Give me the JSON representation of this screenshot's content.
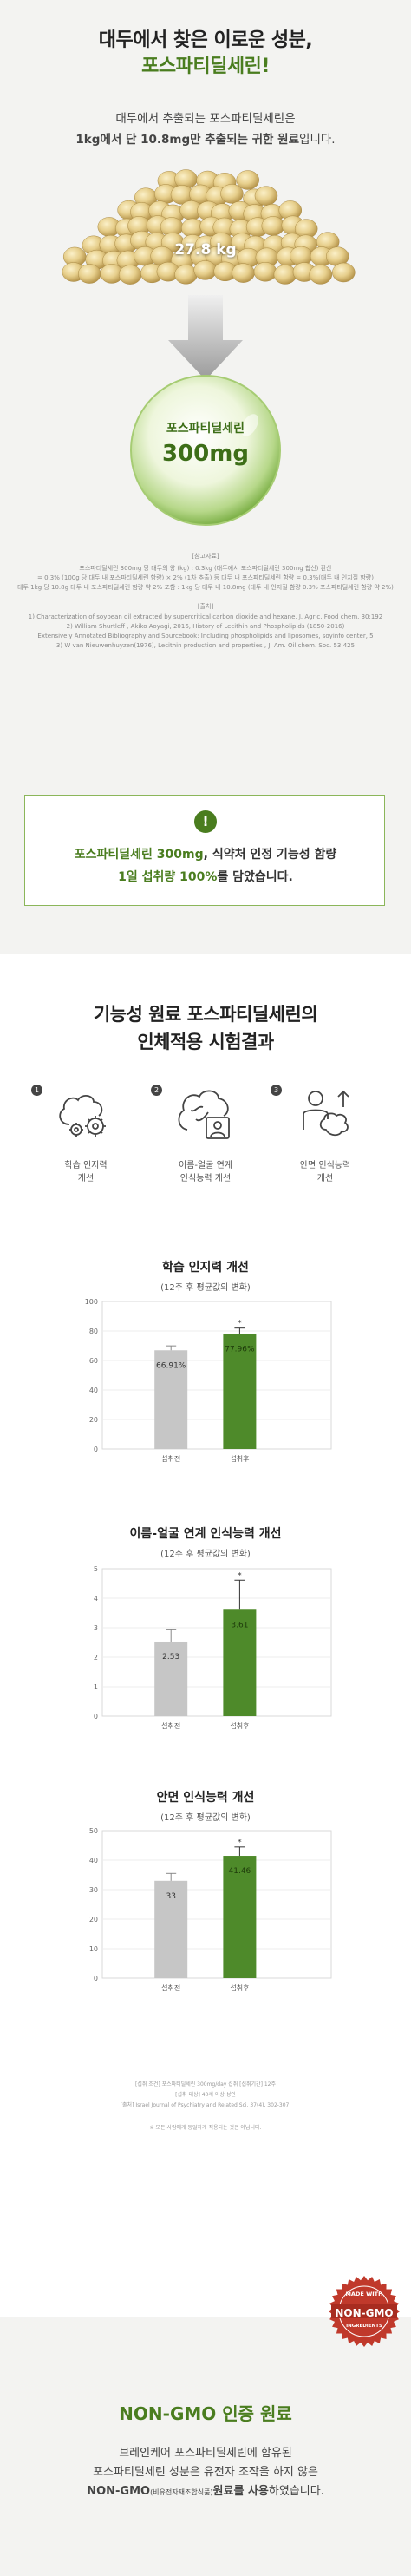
{
  "hero": {
    "title_line1": "대두에서 찾은 이로운 성분,",
    "title_line2": "포스파티딜세린!",
    "desc_line1": "대두에서 추출되는 포스파티딜세린은",
    "desc_line2_bold": "1kg에서 단 10.8mg만 추출되는 귀한 원료",
    "desc_line2_rest": "입니다.",
    "bean_weight": "27.8 kg",
    "bubble_label": "포스파티딜세린",
    "bubble_value": "300mg"
  },
  "calc": {
    "heading": "[참고자료]",
    "lines": [
      "포스파티딜세린 300mg 당 대두의 양 (kg) : 0.3kg (대두에서 포스파티딜세린 300mg 합산) 환산",
      "= 0.3% (100g 당 대두 내 포스파티딜세린 함량) × 2% (1차 추출) 등 대두 내 포스파티딜세린 함량 = 0.3%(대두 내 인지질 함량)",
      "대두 1kg 당 10.8g 대두 내 포스파티딜세린 함량 약 2% 포함 : 1kg 당 대두 내 10.8mg (대두 내 인지질 함량 0.3% 포스파티딜세린 함량 약 2%)"
    ],
    "source_heading": "[출처]",
    "sources": [
      "1) Characterization of soybean oil extracted by supercritical carbon dioxide and hexane, J. Agric. Food chem. 30:192",
      "2) William Shurtleff , Akiko Aoyagi, 2016, History of Lecithin and Phospholipids (1850-2016)",
      "Extensively Annotated Bibliography and Sourcebook: Including phospholipids and liposomes, soyinfo center, 5",
      "3) W van Nieuwenhuyzen(1976), Lecithin production and properties , J. Am. Oil chem. Soc. 53:425"
    ]
  },
  "notice": {
    "icon": "exclamation-icon",
    "line1_bold": "포스파티딜세린 300mg",
    "line1_rest": ", 식약처 인정 기능성 함량",
    "line2_bold": "1일 섭취량 100%",
    "line2_rest": "를 담았습니다."
  },
  "trial": {
    "title_line1": "기능성 원료 포스파티딜세린의",
    "title_line2": "인체적용 시험결과",
    "features": [
      {
        "num": "1",
        "icon": "brain-gears-icon",
        "line1": "학습 인지력",
        "line2": "개선"
      },
      {
        "num": "2",
        "icon": "brain-face-icon",
        "line1": "이름-얼굴 연계",
        "line2": "인식능력 개선"
      },
      {
        "num": "3",
        "icon": "person-brain-icon",
        "line1": "안면 인식능력",
        "line2": "개선"
      }
    ]
  },
  "chart_data": [
    {
      "type": "bar",
      "title": "학습 인지력 개선",
      "subtitle": "(12주 후 평균값의 변화)",
      "categories": [
        "섭취전",
        "섭취후"
      ],
      "values": [
        66.91,
        77.96
      ],
      "value_labels": [
        "66.91%",
        "77.96%"
      ],
      "ylim": [
        0,
        100
      ],
      "yticks": [
        0,
        20,
        40,
        60,
        80,
        100
      ],
      "error": [
        3,
        4
      ],
      "colors": [
        "#c6c6c6",
        "#4e8a2a"
      ],
      "significance": "*"
    },
    {
      "type": "bar",
      "title": "이름-얼굴 연계 인식능력 개선",
      "subtitle": "(12주 후 평균값의 변화)",
      "categories": [
        "섭취전",
        "섭취후"
      ],
      "values": [
        2.53,
        3.61
      ],
      "value_labels": [
        "2.53",
        "3.61"
      ],
      "ylim": [
        0,
        5
      ],
      "yticks": [
        0,
        1,
        2,
        3,
        4,
        5
      ],
      "error": [
        0.4,
        1.0
      ],
      "colors": [
        "#c6c6c6",
        "#4e8a2a"
      ],
      "significance": "*"
    },
    {
      "type": "bar",
      "title": "안면 인식능력 개선",
      "subtitle": "(12주 후 평균값의 변화)",
      "categories": [
        "섭취전",
        "섭취후"
      ],
      "values": [
        33,
        41.46
      ],
      "value_labels": [
        "33",
        "41.46"
      ],
      "ylim": [
        0,
        50
      ],
      "yticks": [
        0,
        10,
        20,
        30,
        40,
        50
      ],
      "error": [
        2.5,
        3
      ],
      "colors": [
        "#c6c6c6",
        "#4e8a2a"
      ],
      "significance": "*"
    }
  ],
  "footnotes": {
    "lines": [
      "[섭취 조건] 포스파티딜세린 300mg/day 섭취 [섭취기간] 12주",
      "[섭취 대상] 40세 이상 성인",
      "[출처] Israel Journal of Psychiatry and Related Sci. 37(4), 302-307."
    ],
    "note": "※ 모든 사람에게 동일하게 적용되는 것은 아닙니다."
  },
  "nongmo": {
    "stamp_top": "MADE WITH",
    "stamp_main": "NON-GMO",
    "stamp_bottom": "INGREDIENTS",
    "title": "NON-GMO 인증 원료",
    "line1": "브레인케어 포스파티딜세린에 함유된",
    "line2": "포스파티딜세린 성분은 유전자 조작을 하지 않은",
    "line3_bold": "NON-GMO",
    "line3_small": "(비유전자재조합식품)",
    "line3_bold2": "원료를 사용",
    "line3_rest": "하였습니다."
  }
}
